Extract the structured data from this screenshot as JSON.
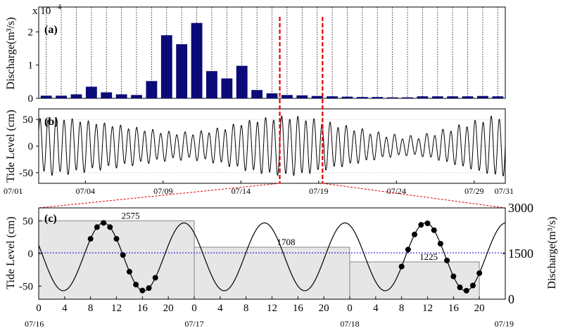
{
  "colors": {
    "bar": "#0a0a78",
    "tide_line": "#000000",
    "ref_line": "#e00000",
    "zero_line": "#0000e0",
    "discharge_fill": "#e6e6e6",
    "discharge_edge": "#888888"
  },
  "chart_data": [
    {
      "type": "bar",
      "panel_label": "(a)",
      "ylabel": "Discharge(m³/s)",
      "scale_label": "x 10",
      "scale_exp": "4",
      "ylim": [
        0,
        2.75
      ],
      "yticks": [
        0,
        1,
        2
      ],
      "grid": "vertical dotted daily lines",
      "x_start_day": 1,
      "values": [
        0.08,
        0.08,
        0.12,
        0.35,
        0.18,
        0.12,
        0.1,
        0.52,
        1.9,
        1.63,
        2.27,
        0.82,
        0.6,
        0.98,
        0.25,
        0.15,
        0.1,
        0.09,
        0.07,
        0.06,
        0.05,
        0.04,
        0.04,
        0.03,
        0.03,
        0.06,
        0.06,
        0.06,
        0.06,
        0.07,
        0.06
      ],
      "units": "x 10^4 m³/s"
    },
    {
      "type": "line",
      "panel_label": "(b)",
      "ylabel": "Tide Level (cm)",
      "ylim": [
        -70,
        70
      ],
      "yticks": [
        -50,
        0,
        50
      ],
      "xticks": [
        "07/01",
        "07/04",
        "07/09",
        "07/14",
        "07/19",
        "07/24",
        "07/29",
        "07/31"
      ],
      "x_range_days": [
        1,
        31
      ],
      "series": [
        {
          "values_description_days": "semi-diurnal tide, ~1.93 cycles/day",
          "amplitude_by_day": [
            50,
            52,
            50,
            46,
            42,
            38,
            34,
            30,
            26,
            24,
            24,
            28,
            34,
            42,
            48,
            52,
            54,
            52,
            46,
            40,
            34,
            28,
            22,
            18,
            16,
            20,
            28,
            36,
            44,
            52,
            56,
            58
          ]
        }
      ],
      "highlight_days": [
        16,
        19
      ]
    },
    {
      "type": "line",
      "panel_label": "(c)",
      "ylabel": "Tide Level (cm)",
      "ylabel_right": "Discharge(m³/s)",
      "ylim": [
        -70,
        70
      ],
      "yticks": [
        -50,
        0,
        50
      ],
      "yticks_right": [
        0,
        1500,
        3000
      ],
      "xtick_hours": [
        "0",
        "4",
        "8",
        "12",
        "16",
        "20",
        "0",
        "4",
        "8",
        "12",
        "16",
        "20",
        "0",
        "4",
        "8",
        "12",
        "16",
        "20"
      ],
      "xticks_dates": [
        "07/16",
        "07/17",
        "07/18",
        "07/19"
      ],
      "discharge_blocks": [
        {
          "start_h": 0,
          "end_h": 24,
          "value": 2575,
          "label": "2575"
        },
        {
          "start_h": 24,
          "end_h": 48,
          "value": 1708,
          "label": "1708"
        },
        {
          "start_h": 48,
          "end_h": 68,
          "value": 1225,
          "label": "1225"
        }
      ],
      "tide": {
        "period_h": 12.42,
        "mean": -5,
        "amplitude": 52,
        "first_peak_h": 10
      },
      "markers": [
        {
          "segment": [
            8,
            18
          ],
          "comment": "observed points day 1"
        },
        {
          "segment": [
            56,
            68
          ],
          "comment": "observed points day 3"
        }
      ]
    }
  ]
}
